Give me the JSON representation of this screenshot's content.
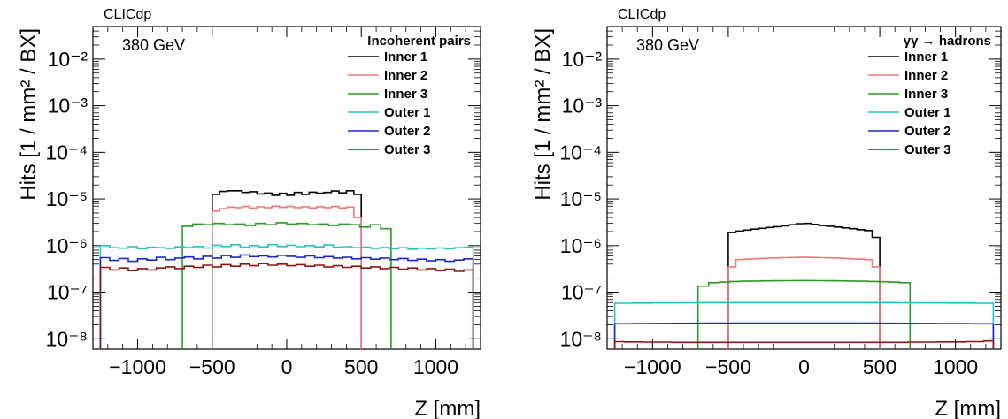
{
  "chart_data": [
    {
      "type": "line",
      "step": true,
      "log_y": true,
      "header": "CLICdp",
      "annotation": "380 GeV",
      "legend_title": "Incoherent pairs",
      "legend_position": "top-right",
      "xlabel": "Z [mm]",
      "ylabel": "Hits [1 / mm² / BX]",
      "xlim": [
        -1300,
        1300
      ],
      "ylim": [
        6e-09,
        0.05
      ],
      "x_ticks": [
        -1000,
        -500,
        0,
        500,
        1000
      ],
      "x_tick_labels": [
        "−1000",
        "−500",
        "0",
        "500",
        "1000"
      ],
      "y_tick_labels": [
        "10⁻⁸",
        "10⁻⁷",
        "10⁻⁶",
        "10⁻⁵",
        "10⁻⁴",
        "10⁻³",
        "10⁻²"
      ],
      "series": [
        {
          "name": "Inner 1",
          "color": "#000000",
          "extent": [
            -500,
            500
          ],
          "values": [
            1.25e-05,
            1.45e-05,
            1.5e-05,
            1.5e-05,
            1.38e-05,
            1.43e-05,
            1.28e-05,
            1.34e-05,
            1.2e-05,
            1.32e-05,
            1.2e-05,
            1.38e-05,
            1.25e-05,
            1.4e-05,
            1.33e-05,
            1.38e-05,
            1.48e-05,
            1.35e-05,
            1.5e-05,
            1.25e-05
          ]
        },
        {
          "name": "Inner 2",
          "color": "#f07878",
          "extent": [
            -500,
            500
          ],
          "values": [
            5.5e-06,
            6.2e-06,
            6.7e-06,
            6.5e-06,
            6.9e-06,
            6.4e-06,
            6.8e-06,
            6.5e-06,
            7e-06,
            6.6e-06,
            6.9e-06,
            6.5e-06,
            6.8e-06,
            6.4e-06,
            6.8e-06,
            6.5e-06,
            6.9e-06,
            6.4e-06,
            6.7e-06,
            4e-06
          ]
        },
        {
          "name": "Inner 3",
          "color": "#2a9a2a",
          "extent": [
            -700,
            700
          ],
          "values": [
            2.6e-06,
            2.9e-06,
            2.8e-06,
            3e-06,
            2.8e-06,
            2.9e-06,
            2.7e-06,
            3e-06,
            2.8e-06,
            3.1e-06,
            2.9e-06,
            3e-06,
            2.8e-06,
            2.9e-06,
            2.7e-06,
            2.9e-06,
            2.8e-06,
            2.5e-06,
            2.8e-06,
            2.3e-06
          ]
        },
        {
          "name": "Outer 1",
          "color": "#22c4c4",
          "extent": [
            -1250,
            1250
          ],
          "values": [
            1e-06,
            9e-07,
            8.8e-07,
            9.5e-07,
            8.6e-07,
            9.2e-07,
            9e-07,
            8.7e-07,
            9.4e-07,
            9.1e-07,
            9.6e-07,
            8.9e-07,
            1.02e-06,
            9.6e-07,
            1.04e-06,
            9.3e-07,
            1e-06,
            9.4e-07,
            1.05e-06,
            9.6e-07,
            1.02e-06,
            9.5e-07,
            1e-06,
            9.4e-07,
            1.03e-06,
            9.2e-07,
            9.5e-07,
            9e-07,
            9.3e-07,
            8.7e-07,
            9.1e-07,
            8.6e-07,
            9e-07,
            8.4e-07,
            8.8e-07,
            8.5e-07,
            8.9e-07,
            8.6e-07,
            9e-07,
            9.2e-07
          ]
        },
        {
          "name": "Outer 2",
          "color": "#1c28c8",
          "extent": [
            -1250,
            1250
          ],
          "values": [
            5.5e-07,
            4.8e-07,
            5.3e-07,
            4.6e-07,
            5.2e-07,
            4.9e-07,
            5.6e-07,
            5e-07,
            5.4e-07,
            5.7e-07,
            5.2e-07,
            5.9e-07,
            5.4e-07,
            6.1e-07,
            5.6e-07,
            6.3e-07,
            5.8e-07,
            6e-07,
            5.7e-07,
            6.2e-07,
            5.9e-07,
            5.6e-07,
            6e-07,
            5.5e-07,
            5.8e-07,
            5.4e-07,
            5.6e-07,
            5.2e-07,
            5.5e-07,
            5.1e-07,
            5.4e-07,
            5e-07,
            5.3e-07,
            4.8e-07,
            5.1e-07,
            4.7e-07,
            5e-07,
            4.6e-07,
            4.9e-07,
            5.2e-07
          ]
        },
        {
          "name": "Outer 3",
          "color": "#8c1616",
          "extent": [
            -1250,
            1250
          ],
          "values": [
            3.4e-07,
            3e-07,
            3.3e-07,
            2.9e-07,
            3.2e-07,
            3e-07,
            3.3e-07,
            3.5e-07,
            3.2e-07,
            3.6e-07,
            3.4e-07,
            3.8e-07,
            3.5e-07,
            3.9e-07,
            3.6e-07,
            4e-07,
            3.7e-07,
            4.1e-07,
            3.8e-07,
            4e-07,
            3.7e-07,
            3.9e-07,
            3.6e-07,
            3.8e-07,
            3.5e-07,
            3.7e-07,
            3.4e-07,
            3.6e-07,
            3.3e-07,
            3.5e-07,
            3.2e-07,
            3.4e-07,
            3.1e-07,
            3.3e-07,
            3e-07,
            3.2e-07,
            2.9e-07,
            3.1e-07,
            2.8e-07,
            3e-07
          ]
        }
      ]
    },
    {
      "type": "line",
      "step": true,
      "log_y": true,
      "header": "CLICdp",
      "annotation": "380 GeV",
      "legend_title": "γγ → hadrons",
      "legend_position": "top-right",
      "xlabel": "Z [mm]",
      "ylabel": "Hits [1 / mm² / BX]",
      "xlim": [
        -1300,
        1300
      ],
      "ylim": [
        6e-09,
        0.05
      ],
      "x_ticks": [
        -1000,
        -500,
        0,
        500,
        1000
      ],
      "x_tick_labels": [
        "−1000",
        "−500",
        "0",
        "500",
        "1000"
      ],
      "y_tick_labels": [
        "10⁻⁸",
        "10⁻⁷",
        "10⁻⁶",
        "10⁻⁵",
        "10⁻⁴",
        "10⁻³",
        "10⁻²"
      ],
      "series": [
        {
          "name": "Inner 1",
          "color": "#000000",
          "extent": [
            -500,
            500
          ],
          "values": [
            1.9e-06,
            2.05e-06,
            2.15e-06,
            2.25e-06,
            2.35e-06,
            2.45e-06,
            2.55e-06,
            2.65e-06,
            2.8e-06,
            2.95e-06,
            3e-06,
            2.85e-06,
            2.7e-06,
            2.6e-06,
            2.5e-06,
            2.4e-06,
            2.3e-06,
            2.2e-06,
            2.1e-06,
            1.5e-06
          ]
        },
        {
          "name": "Inner 2",
          "color": "#f07878",
          "extent": [
            -500,
            500
          ],
          "values": [
            3.5e-07,
            5e-07,
            5.1e-07,
            5.2e-07,
            5.3e-07,
            5.4e-07,
            5.45e-07,
            5.5e-07,
            5.55e-07,
            5.6e-07,
            5.6e-07,
            5.55e-07,
            5.5e-07,
            5.45e-07,
            5.4e-07,
            5.3e-07,
            5.2e-07,
            5.1e-07,
            5e-07,
            3.5e-07
          ]
        },
        {
          "name": "Inner 3",
          "color": "#2a9a2a",
          "extent": [
            -700,
            700
          ],
          "values": [
            1.35e-07,
            1.6e-07,
            1.65e-07,
            1.7e-07,
            1.72e-07,
            1.74e-07,
            1.75e-07,
            1.76e-07,
            1.77e-07,
            1.78e-07,
            1.78e-07,
            1.77e-07,
            1.76e-07,
            1.75e-07,
            1.74e-07,
            1.72e-07,
            1.7e-07,
            1.68e-07,
            1.65e-07,
            1.6e-07
          ]
        },
        {
          "name": "Outer 1",
          "color": "#22c4c4",
          "extent": [
            -1250,
            1250
          ],
          "values": [
            5.8e-08,
            5.8e-08,
            5.85e-08,
            5.85e-08,
            5.9e-08,
            5.9e-08,
            5.9e-08,
            5.95e-08,
            5.95e-08,
            6e-08,
            6e-08,
            6e-08,
            6e-08,
            6e-08,
            6e-08,
            6e-08,
            6e-08,
            6e-08,
            6e-08,
            6e-08,
            6e-08,
            6e-08,
            6e-08,
            6e-08,
            6e-08,
            6e-08,
            6e-08,
            6e-08,
            6e-08,
            6e-08,
            5.95e-08,
            5.95e-08,
            5.9e-08,
            5.9e-08,
            5.9e-08,
            5.85e-08,
            5.85e-08,
            5.85e-08,
            5.8e-08,
            5.8e-08
          ]
        },
        {
          "name": "Outer 2",
          "color": "#1c28c8",
          "extent": [
            -1250,
            1250
          ],
          "values": [
            2.1e-08,
            2.1e-08,
            2.12e-08,
            2.12e-08,
            2.14e-08,
            2.14e-08,
            2.15e-08,
            2.15e-08,
            2.16e-08,
            2.16e-08,
            2.17e-08,
            2.17e-08,
            2.17e-08,
            2.17e-08,
            2.17e-08,
            2.17e-08,
            2.17e-08,
            2.17e-08,
            2.17e-08,
            2.17e-08,
            2.17e-08,
            2.17e-08,
            2.17e-08,
            2.17e-08,
            2.17e-08,
            2.17e-08,
            2.17e-08,
            2.17e-08,
            2.16e-08,
            2.16e-08,
            2.15e-08,
            2.15e-08,
            2.14e-08,
            2.14e-08,
            2.13e-08,
            2.12e-08,
            2.12e-08,
            2.11e-08,
            2.1e-08,
            2.1e-08
          ]
        },
        {
          "name": "Outer 3",
          "color": "#8c1616",
          "extent": [
            -1250,
            1250
          ],
          "values": [
            8.7e-09,
            8.6e-09,
            8.6e-09,
            8.5e-09,
            8.5e-09,
            8.5e-09,
            8.4e-09,
            8.4e-09,
            8.4e-09,
            8.4e-09,
            8.4e-09,
            8.4e-09,
            8.4e-09,
            8.4e-09,
            8.4e-09,
            8.4e-09,
            8.4e-09,
            8.4e-09,
            8.4e-09,
            8.4e-09,
            8.4e-09,
            8.4e-09,
            8.4e-09,
            8.4e-09,
            8.4e-09,
            8.4e-09,
            8.4e-09,
            8.4e-09,
            8.4e-09,
            8.4e-09,
            8.4e-09,
            8.5e-09,
            8.5e-09,
            8.5e-09,
            8.6e-09,
            8.6e-09,
            8.6e-09,
            8.7e-09,
            8.7e-09,
            9e-09
          ]
        }
      ]
    }
  ]
}
